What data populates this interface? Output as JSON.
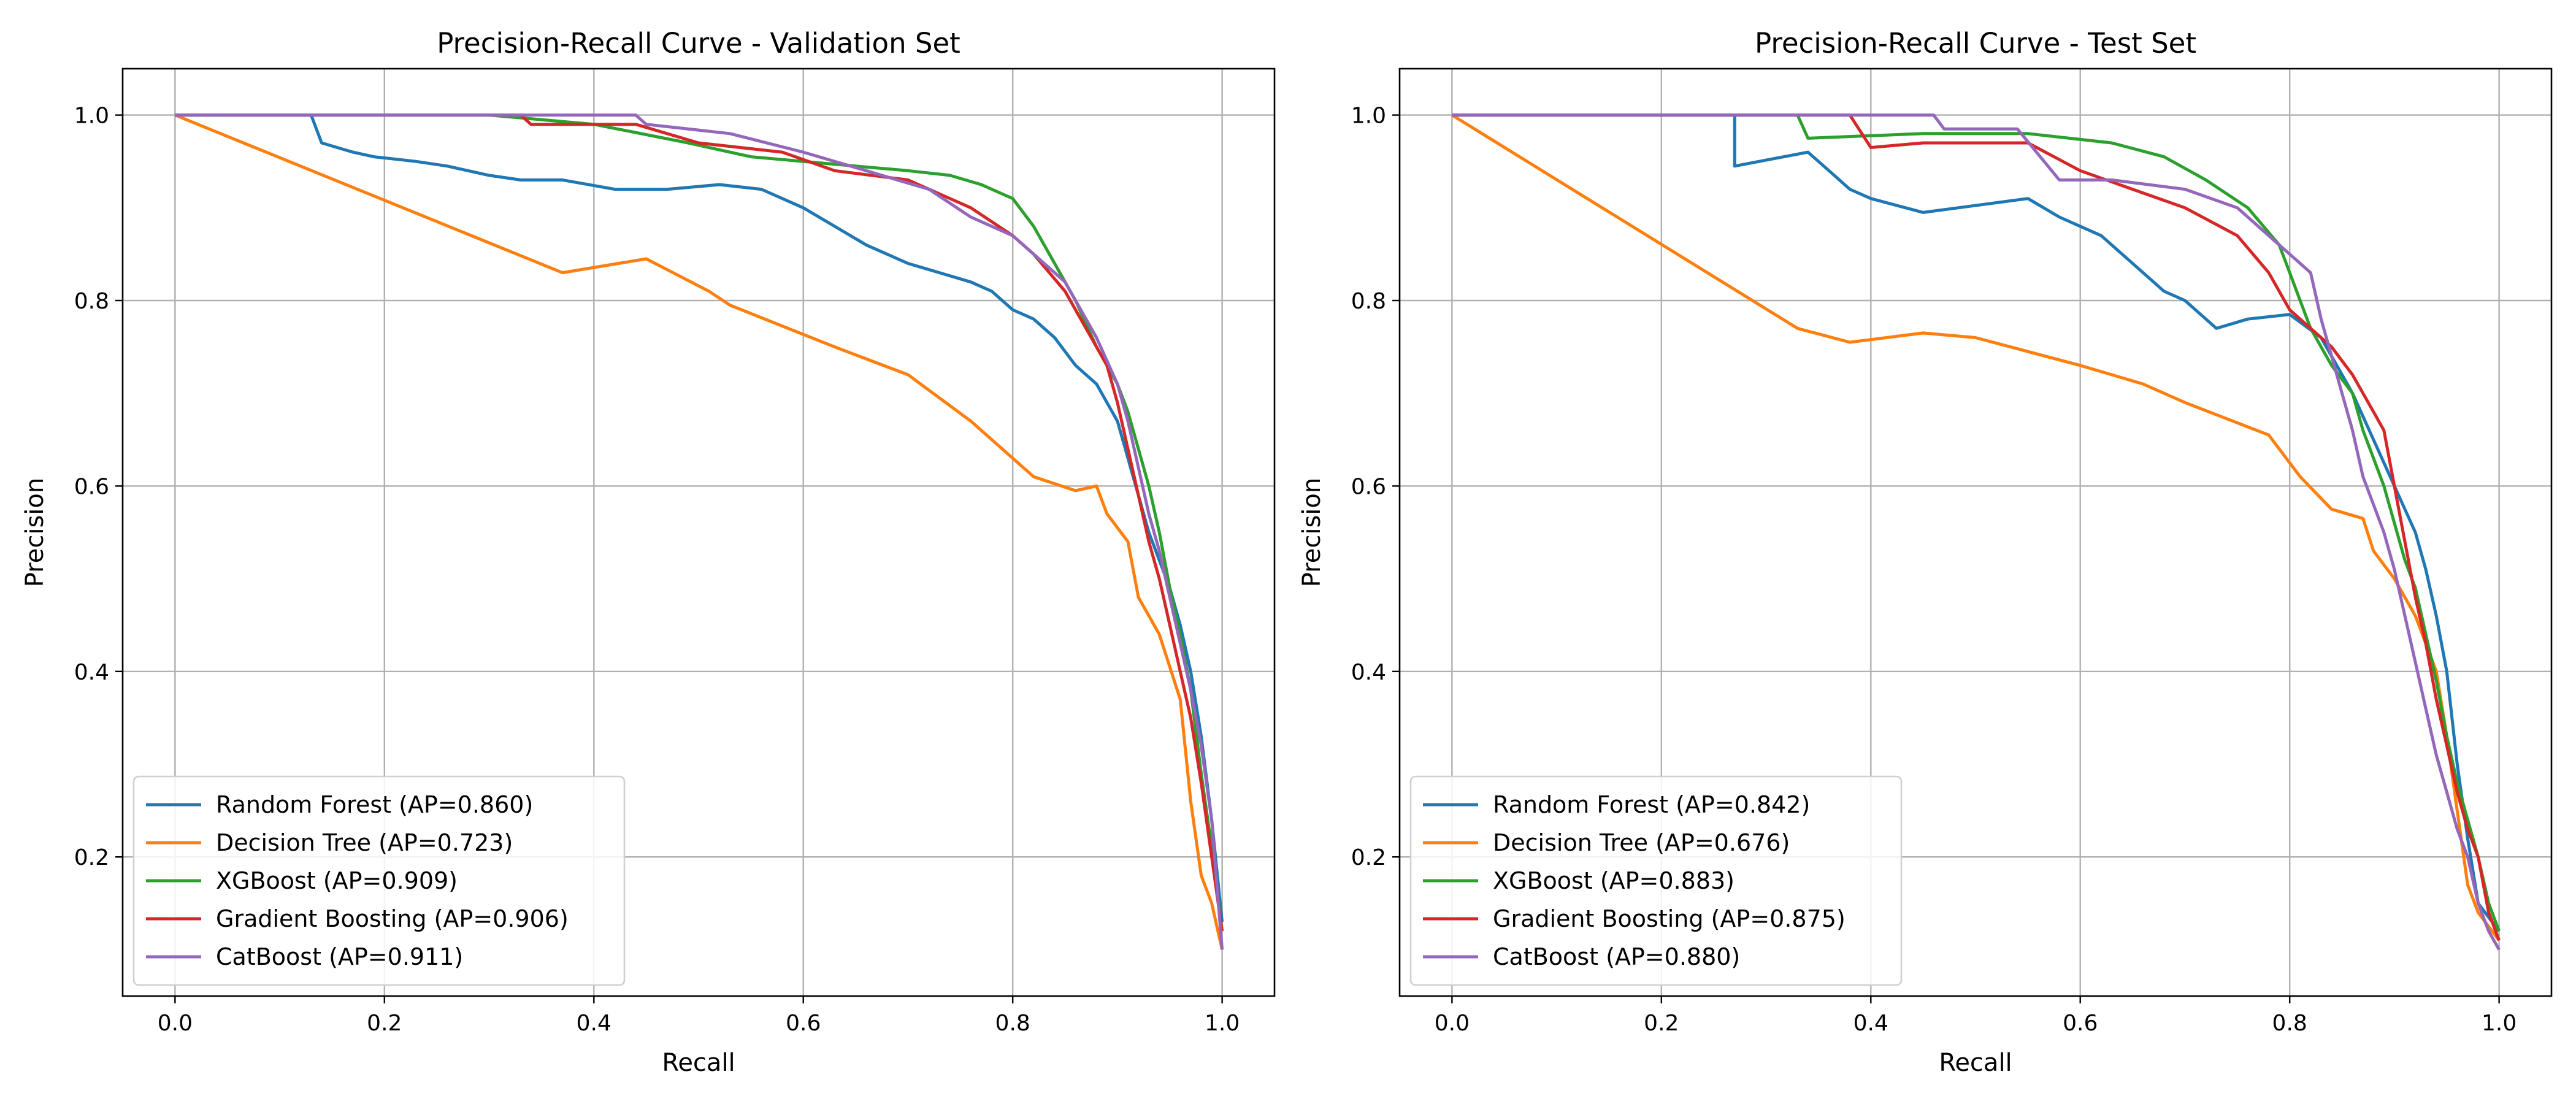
{
  "chart_data": [
    {
      "type": "line",
      "title": "Precision-Recall Curve - Validation Set",
      "xlabel": "Recall",
      "ylabel": "Precision",
      "xlim": [
        -0.05,
        1.05
      ],
      "ylim": [
        0.05,
        1.05
      ],
      "xticks": [
        "0.0",
        "0.2",
        "0.4",
        "0.6",
        "0.8",
        "1.0"
      ],
      "yticks": [
        "0.2",
        "0.4",
        "0.6",
        "0.8",
        "1.0"
      ],
      "grid": true,
      "legend_position": "lower-left",
      "series": [
        {
          "name": "Random Forest (AP=0.860)",
          "color": "#1f77b4",
          "x": [
            0,
            0.13,
            0.14,
            0.17,
            0.19,
            0.23,
            0.26,
            0.3,
            0.33,
            0.37,
            0.42,
            0.47,
            0.52,
            0.56,
            0.6,
            0.63,
            0.66,
            0.7,
            0.73,
            0.76,
            0.78,
            0.8,
            0.82,
            0.84,
            0.86,
            0.88,
            0.89,
            0.9,
            0.91,
            0.92,
            0.93,
            0.94,
            0.95,
            0.96,
            0.97,
            0.98,
            0.99,
            1.0
          ],
          "y": [
            1.0,
            1.0,
            0.97,
            0.96,
            0.955,
            0.95,
            0.945,
            0.935,
            0.93,
            0.93,
            0.92,
            0.92,
            0.925,
            0.92,
            0.9,
            0.88,
            0.86,
            0.84,
            0.83,
            0.82,
            0.81,
            0.79,
            0.78,
            0.76,
            0.73,
            0.71,
            0.69,
            0.67,
            0.63,
            0.59,
            0.55,
            0.52,
            0.49,
            0.45,
            0.4,
            0.33,
            0.24,
            0.13
          ]
        },
        {
          "name": "Decision Tree (AP=0.723)",
          "color": "#ff7f0e",
          "x": [
            0,
            0.37,
            0.45,
            0.51,
            0.53,
            0.63,
            0.7,
            0.76,
            0.77,
            0.82,
            0.86,
            0.88,
            0.89,
            0.91,
            0.92,
            0.94,
            0.96,
            0.97,
            0.98,
            0.99,
            1.0
          ],
          "y": [
            1.0,
            0.83,
            0.845,
            0.81,
            0.795,
            0.75,
            0.72,
            0.67,
            0.66,
            0.61,
            0.595,
            0.6,
            0.57,
            0.54,
            0.48,
            0.44,
            0.37,
            0.26,
            0.18,
            0.15,
            0.1
          ]
        },
        {
          "name": "XGBoost (AP=0.909)",
          "color": "#2ca02c",
          "x": [
            0,
            0.3,
            0.4,
            0.49,
            0.55,
            0.6,
            0.65,
            0.7,
            0.74,
            0.77,
            0.8,
            0.82,
            0.84,
            0.86,
            0.88,
            0.9,
            0.91,
            0.92,
            0.93,
            0.94,
            0.95,
            0.96,
            0.97,
            0.98,
            0.99,
            1.0
          ],
          "y": [
            1.0,
            1.0,
            0.99,
            0.97,
            0.955,
            0.95,
            0.945,
            0.94,
            0.935,
            0.925,
            0.91,
            0.88,
            0.84,
            0.8,
            0.75,
            0.71,
            0.68,
            0.64,
            0.6,
            0.55,
            0.49,
            0.44,
            0.38,
            0.29,
            0.21,
            0.12
          ]
        },
        {
          "name": "Gradient Boosting (AP=0.906)",
          "color": "#d62728",
          "x": [
            0,
            0.33,
            0.34,
            0.44,
            0.5,
            0.58,
            0.63,
            0.7,
            0.76,
            0.8,
            0.82,
            0.85,
            0.87,
            0.89,
            0.9,
            0.91,
            0.92,
            0.93,
            0.94,
            0.95,
            0.96,
            0.97,
            0.98,
            0.99,
            1.0
          ],
          "y": [
            1.0,
            1.0,
            0.99,
            0.99,
            0.97,
            0.96,
            0.94,
            0.93,
            0.9,
            0.87,
            0.85,
            0.81,
            0.77,
            0.73,
            0.69,
            0.64,
            0.59,
            0.54,
            0.5,
            0.45,
            0.4,
            0.35,
            0.28,
            0.2,
            0.12
          ]
        },
        {
          "name": "CatBoost (AP=0.911)",
          "color": "#9467bd",
          "x": [
            0,
            0.44,
            0.45,
            0.53,
            0.6,
            0.66,
            0.72,
            0.76,
            0.8,
            0.83,
            0.85,
            0.87,
            0.88,
            0.9,
            0.91,
            0.92,
            0.93,
            0.94,
            0.95,
            0.96,
            0.97,
            0.98,
            0.99,
            1.0
          ],
          "y": [
            1.0,
            1.0,
            0.99,
            0.98,
            0.96,
            0.94,
            0.92,
            0.89,
            0.87,
            0.84,
            0.82,
            0.78,
            0.76,
            0.71,
            0.67,
            0.62,
            0.57,
            0.53,
            0.48,
            0.43,
            0.38,
            0.32,
            0.24,
            0.1
          ]
        }
      ]
    },
    {
      "type": "line",
      "title": "Precision-Recall Curve - Test Set",
      "xlabel": "Recall",
      "ylabel": "Precision",
      "xlim": [
        -0.05,
        1.05
      ],
      "ylim": [
        0.05,
        1.05
      ],
      "xticks": [
        "0.0",
        "0.2",
        "0.4",
        "0.6",
        "0.8",
        "1.0"
      ],
      "yticks": [
        "0.2",
        "0.4",
        "0.6",
        "0.8",
        "1.0"
      ],
      "grid": true,
      "legend_position": "lower-left",
      "series": [
        {
          "name": "Random Forest (AP=0.842)",
          "color": "#1f77b4",
          "x": [
            0,
            0.27,
            0.27,
            0.34,
            0.36,
            0.38,
            0.4,
            0.45,
            0.55,
            0.58,
            0.62,
            0.65,
            0.68,
            0.7,
            0.73,
            0.76,
            0.8,
            0.83,
            0.86,
            0.88,
            0.9,
            0.92,
            0.93,
            0.94,
            0.95,
            0.96,
            0.97,
            0.98,
            1.0
          ],
          "y": [
            1.0,
            1.0,
            0.945,
            0.96,
            0.94,
            0.92,
            0.91,
            0.895,
            0.91,
            0.89,
            0.87,
            0.84,
            0.81,
            0.8,
            0.77,
            0.78,
            0.785,
            0.76,
            0.7,
            0.65,
            0.6,
            0.55,
            0.51,
            0.46,
            0.4,
            0.3,
            0.22,
            0.15,
            0.12
          ]
        },
        {
          "name": "Decision Tree (AP=0.676)",
          "color": "#ff7f0e",
          "x": [
            0,
            0.33,
            0.38,
            0.45,
            0.5,
            0.6,
            0.66,
            0.7,
            0.78,
            0.81,
            0.84,
            0.87,
            0.88,
            0.9,
            0.92,
            0.94,
            0.95,
            0.96,
            0.97,
            0.98,
            1.0
          ],
          "y": [
            1.0,
            0.77,
            0.755,
            0.765,
            0.76,
            0.73,
            0.71,
            0.69,
            0.655,
            0.61,
            0.575,
            0.565,
            0.53,
            0.5,
            0.46,
            0.4,
            0.33,
            0.25,
            0.17,
            0.14,
            0.11
          ]
        },
        {
          "name": "XGBoost (AP=0.883)",
          "color": "#2ca02c",
          "x": [
            0,
            0.33,
            0.34,
            0.45,
            0.55,
            0.63,
            0.68,
            0.72,
            0.76,
            0.79,
            0.8,
            0.82,
            0.84,
            0.86,
            0.87,
            0.88,
            0.89,
            0.9,
            0.91,
            0.92,
            0.93,
            0.94,
            0.95,
            0.96,
            0.97,
            0.98,
            0.99,
            1.0
          ],
          "y": [
            1.0,
            1.0,
            0.975,
            0.98,
            0.98,
            0.97,
            0.955,
            0.93,
            0.9,
            0.86,
            0.83,
            0.77,
            0.73,
            0.7,
            0.66,
            0.63,
            0.6,
            0.56,
            0.52,
            0.49,
            0.44,
            0.39,
            0.33,
            0.28,
            0.24,
            0.2,
            0.15,
            0.12
          ]
        },
        {
          "name": "Gradient Boosting (AP=0.875)",
          "color": "#d62728",
          "x": [
            0,
            0.38,
            0.4,
            0.45,
            0.55,
            0.6,
            0.65,
            0.7,
            0.75,
            0.78,
            0.8,
            0.82,
            0.84,
            0.86,
            0.87,
            0.88,
            0.89,
            0.9,
            0.91,
            0.92,
            0.93,
            0.94,
            0.95,
            0.96,
            0.97,
            0.98,
            0.99,
            1.0
          ],
          "y": [
            1.0,
            1.0,
            0.965,
            0.97,
            0.97,
            0.94,
            0.92,
            0.9,
            0.87,
            0.83,
            0.79,
            0.77,
            0.75,
            0.72,
            0.7,
            0.68,
            0.66,
            0.6,
            0.54,
            0.48,
            0.43,
            0.37,
            0.32,
            0.27,
            0.23,
            0.2,
            0.14,
            0.11
          ]
        },
        {
          "name": "CatBoost (AP=0.880)",
          "color": "#9467bd",
          "x": [
            0,
            0.46,
            0.47,
            0.54,
            0.58,
            0.63,
            0.7,
            0.75,
            0.78,
            0.8,
            0.82,
            0.83,
            0.84,
            0.85,
            0.86,
            0.87,
            0.88,
            0.89,
            0.9,
            0.91,
            0.92,
            0.93,
            0.94,
            0.95,
            0.96,
            0.97,
            0.98,
            0.99,
            1.0
          ],
          "y": [
            1.0,
            1.0,
            0.985,
            0.985,
            0.93,
            0.93,
            0.92,
            0.9,
            0.87,
            0.85,
            0.83,
            0.78,
            0.74,
            0.7,
            0.66,
            0.61,
            0.58,
            0.55,
            0.51,
            0.46,
            0.41,
            0.36,
            0.31,
            0.27,
            0.23,
            0.2,
            0.15,
            0.12,
            0.1
          ]
        }
      ]
    }
  ]
}
